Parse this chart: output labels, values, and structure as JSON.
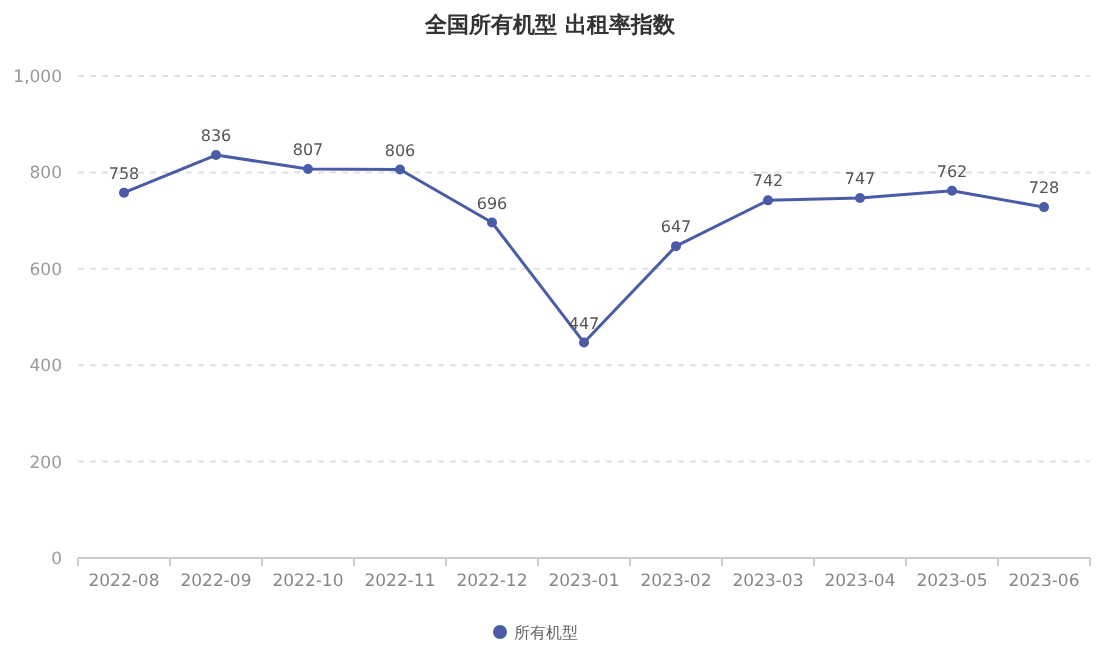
{
  "chart_data": {
    "type": "line",
    "title": "全国所有机型 出租率指数",
    "categories": [
      "2022-08",
      "2022-09",
      "2022-10",
      "2022-11",
      "2022-12",
      "2023-01",
      "2023-02",
      "2023-03",
      "2023-04",
      "2023-05",
      "2023-06"
    ],
    "series": [
      {
        "name": "所有机型",
        "color": "#4a5ca8",
        "values": [
          758,
          836,
          807,
          806,
          696,
          447,
          647,
          742,
          747,
          762,
          728
        ]
      }
    ],
    "ylim": [
      0,
      1000
    ],
    "yticks": [
      0,
      200,
      400,
      600,
      800,
      {
        "value": 1000,
        "label": "1,000"
      }
    ],
    "grid": "y",
    "legend": "bottom",
    "marker": "circle",
    "data_labels": true
  }
}
